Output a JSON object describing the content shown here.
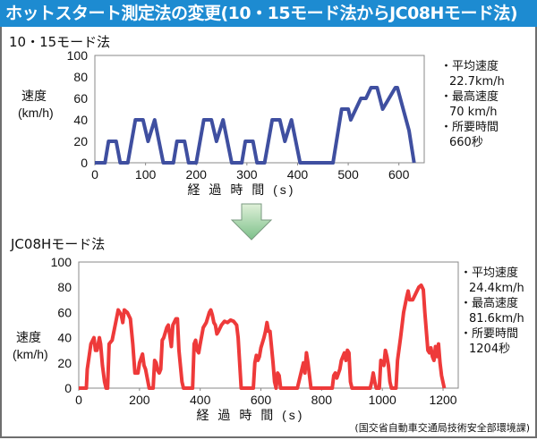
{
  "title": "ホットスタート測定法の変更(10・15モード法からJC08Hモード法)",
  "source": "(国交省自動車交通局技術安全部環境課)",
  "chart_data": [
    {
      "type": "line",
      "title": "10・15モード法",
      "xlabel": "経 過 時 間 (s)",
      "ylabel": "速度",
      "yunit": "(km/h)",
      "xlim": [
        0,
        650
      ],
      "ylim": [
        0,
        100
      ],
      "xticks": [
        0,
        100,
        200,
        300,
        400,
        500,
        600
      ],
      "yticks": [
        0,
        20,
        40,
        60,
        80,
        100
      ],
      "color": "#3f4fa0",
      "info": [
        {
          "label": "・平均速度",
          "value": "22.7km/h"
        },
        {
          "label": "・最高速度",
          "value": "70 km/h"
        },
        {
          "label": "・所要時間",
          "value": "660秒"
        }
      ],
      "points": [
        [
          0,
          0
        ],
        [
          20,
          0
        ],
        [
          27,
          20
        ],
        [
          42,
          20
        ],
        [
          50,
          0
        ],
        [
          65,
          0
        ],
        [
          80,
          40
        ],
        [
          95,
          40
        ],
        [
          105,
          20
        ],
        [
          118,
          40
        ],
        [
          135,
          0
        ],
        [
          155,
          0
        ],
        [
          162,
          20
        ],
        [
          177,
          20
        ],
        [
          185,
          0
        ],
        [
          200,
          0
        ],
        [
          215,
          40
        ],
        [
          230,
          40
        ],
        [
          240,
          20
        ],
        [
          253,
          40
        ],
        [
          270,
          0
        ],
        [
          290,
          0
        ],
        [
          297,
          20
        ],
        [
          312,
          20
        ],
        [
          320,
          0
        ],
        [
          335,
          0
        ],
        [
          350,
          40
        ],
        [
          365,
          40
        ],
        [
          375,
          20
        ],
        [
          388,
          40
        ],
        [
          405,
          0
        ],
        [
          470,
          0
        ],
        [
          487,
          50
        ],
        [
          500,
          50
        ],
        [
          505,
          40
        ],
        [
          525,
          60
        ],
        [
          535,
          60
        ],
        [
          545,
          70
        ],
        [
          557,
          70
        ],
        [
          568,
          50
        ],
        [
          593,
          70
        ],
        [
          597,
          70
        ],
        [
          620,
          30
        ],
        [
          630,
          0
        ]
      ]
    },
    {
      "type": "line",
      "title": "JC08Hモード法",
      "xlabel": "経 過 時 間 (s)",
      "ylabel": "速度",
      "yunit": "(km/h)",
      "xlim": [
        0,
        1250
      ],
      "ylim": [
        0,
        100
      ],
      "xticks": [
        0,
        200,
        400,
        600,
        800,
        1000,
        1200
      ],
      "yticks": [
        0,
        20,
        40,
        60,
        80,
        100
      ],
      "color": "#ee3a3a",
      "info": [
        {
          "label": "・平均速度",
          "value": "24.4km/h"
        },
        {
          "label": "・最高速度",
          "value": "81.6km/h"
        },
        {
          "label": "・所要時間",
          "value": "1204秒"
        }
      ],
      "points": [
        [
          0,
          0
        ],
        [
          25,
          0
        ],
        [
          28,
          15
        ],
        [
          40,
          35
        ],
        [
          50,
          40
        ],
        [
          55,
          30
        ],
        [
          60,
          30
        ],
        [
          68,
          40
        ],
        [
          72,
          35
        ],
        [
          78,
          18
        ],
        [
          85,
          5
        ],
        [
          90,
          0
        ],
        [
          95,
          0
        ],
        [
          100,
          35
        ],
        [
          110,
          38
        ],
        [
          120,
          50
        ],
        [
          130,
          62
        ],
        [
          140,
          58
        ],
        [
          145,
          52
        ],
        [
          150,
          62
        ],
        [
          160,
          60
        ],
        [
          170,
          55
        ],
        [
          178,
          35
        ],
        [
          185,
          12
        ],
        [
          195,
          12
        ],
        [
          200,
          20
        ],
        [
          210,
          27
        ],
        [
          215,
          18
        ],
        [
          220,
          15
        ],
        [
          228,
          5
        ],
        [
          232,
          0
        ],
        [
          245,
          0
        ],
        [
          250,
          22
        ],
        [
          255,
          20
        ],
        [
          260,
          14
        ],
        [
          265,
          12
        ],
        [
          270,
          15
        ],
        [
          275,
          38
        ],
        [
          280,
          40
        ],
        [
          290,
          48
        ],
        [
          295,
          50
        ],
        [
          300,
          42
        ],
        [
          305,
          33
        ],
        [
          310,
          50
        ],
        [
          320,
          55
        ],
        [
          325,
          55
        ],
        [
          330,
          30
        ],
        [
          340,
          5
        ],
        [
          345,
          0
        ],
        [
          375,
          0
        ],
        [
          380,
          35
        ],
        [
          385,
          38
        ],
        [
          390,
          30
        ],
        [
          395,
          28
        ],
        [
          400,
          35
        ],
        [
          410,
          48
        ],
        [
          420,
          52
        ],
        [
          430,
          60
        ],
        [
          435,
          62
        ],
        [
          440,
          58
        ],
        [
          445,
          52
        ],
        [
          450,
          50
        ],
        [
          455,
          43
        ],
        [
          460,
          45
        ],
        [
          470,
          50
        ],
        [
          480,
          53
        ],
        [
          490,
          52
        ],
        [
          500,
          54
        ],
        [
          510,
          53
        ],
        [
          520,
          50
        ],
        [
          525,
          40
        ],
        [
          530,
          20
        ],
        [
          535,
          0
        ],
        [
          575,
          0
        ],
        [
          580,
          20
        ],
        [
          585,
          26
        ],
        [
          590,
          22
        ],
        [
          595,
          25
        ],
        [
          600,
          32
        ],
        [
          610,
          40
        ],
        [
          615,
          45
        ],
        [
          620,
          52
        ],
        [
          625,
          45
        ],
        [
          630,
          45
        ],
        [
          640,
          20
        ],
        [
          645,
          5
        ],
        [
          650,
          0
        ],
        [
          655,
          12
        ],
        [
          660,
          10
        ],
        [
          665,
          0
        ],
        [
          720,
          0
        ],
        [
          725,
          5
        ],
        [
          735,
          15
        ],
        [
          740,
          20
        ],
        [
          745,
          12
        ],
        [
          750,
          28
        ],
        [
          755,
          20
        ],
        [
          760,
          10
        ],
        [
          765,
          0
        ],
        [
          835,
          0
        ],
        [
          840,
          10
        ],
        [
          845,
          12
        ],
        [
          850,
          8
        ],
        [
          860,
          15
        ],
        [
          865,
          22
        ],
        [
          870,
          25
        ],
        [
          875,
          28
        ],
        [
          880,
          22
        ],
        [
          885,
          30
        ],
        [
          890,
          28
        ],
        [
          895,
          5
        ],
        [
          900,
          0
        ],
        [
          960,
          0
        ],
        [
          965,
          5
        ],
        [
          970,
          12
        ],
        [
          975,
          5
        ],
        [
          980,
          0
        ],
        [
          990,
          0
        ],
        [
          995,
          22
        ],
        [
          1000,
          20
        ],
        [
          1005,
          18
        ],
        [
          1010,
          30
        ],
        [
          1015,
          25
        ],
        [
          1020,
          18
        ],
        [
          1025,
          5
        ],
        [
          1030,
          0
        ],
        [
          1045,
          0
        ],
        [
          1050,
          22
        ],
        [
          1060,
          40
        ],
        [
          1070,
          60
        ],
        [
          1080,
          72
        ],
        [
          1085,
          77
        ],
        [
          1090,
          70
        ],
        [
          1100,
          70
        ],
        [
          1110,
          75
        ],
        [
          1120,
          80
        ],
        [
          1128,
          81.6
        ],
        [
          1135,
          78
        ],
        [
          1140,
          60
        ],
        [
          1150,
          30
        ],
        [
          1155,
          28
        ],
        [
          1160,
          32
        ],
        [
          1165,
          25
        ],
        [
          1170,
          22
        ],
        [
          1175,
          33
        ],
        [
          1180,
          25
        ],
        [
          1185,
          35
        ],
        [
          1190,
          20
        ],
        [
          1195,
          10
        ],
        [
          1204,
          0
        ]
      ]
    }
  ]
}
